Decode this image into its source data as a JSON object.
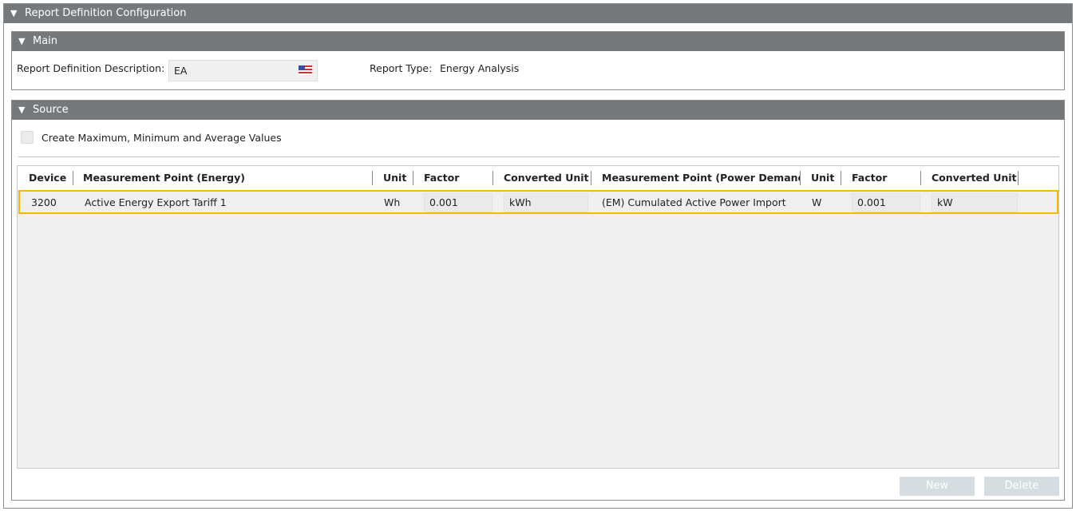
{
  "outer": {
    "title": "Report Definition Configuration"
  },
  "main": {
    "title": "Main",
    "description_label": "Report Definition Description:",
    "description_value": "EA",
    "language_icon": "us-flag-icon",
    "report_type_label": "Report Type:",
    "report_type_value": "Energy Analysis"
  },
  "source": {
    "title": "Source",
    "checkbox_label": "Create Maximum, Minimum and Average Values",
    "checkbox_checked": false,
    "columns": [
      "Device",
      "Measurement Point (Energy)",
      "Unit",
      "Factor",
      "Converted Unit",
      "Measurement Point (Power Demand)",
      "Unit",
      "Factor",
      "Converted Unit"
    ],
    "rows": [
      [
        "3200",
        "Active Energy Export Tariff 1",
        "Wh",
        "0.001",
        "kWh",
        "(EM) Cumulated Active Power Import",
        "W",
        "0.001",
        "kW"
      ]
    ],
    "new_label": "New",
    "delete_label": "Delete"
  },
  "colors": {
    "header": "#76797c",
    "selection": "#f5b800",
    "disabled_button": "#d6dde0"
  }
}
